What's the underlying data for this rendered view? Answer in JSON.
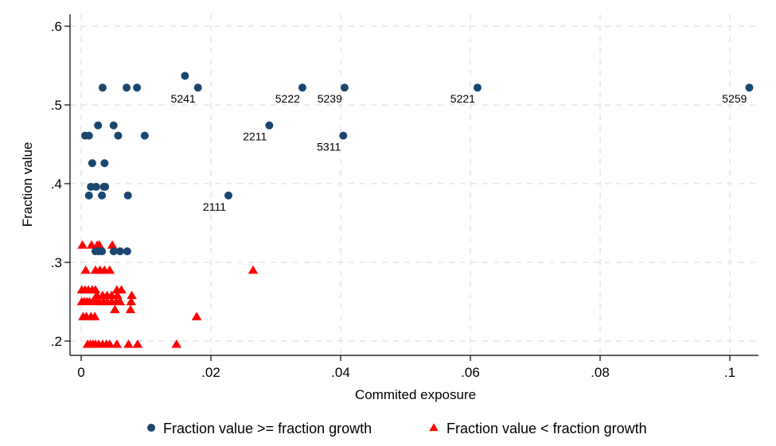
{
  "chart_data": {
    "type": "scatter",
    "title": "",
    "xlabel": "Commited exposure",
    "ylabel": "Fraction value",
    "xlim": [
      -0.0012,
      0.1042
    ],
    "ylim": [
      0.182,
      0.611
    ],
    "x_ticks": [
      0,
      0.02,
      0.04,
      0.06,
      0.08,
      0.1
    ],
    "x_tick_labels": [
      "0",
      ".02",
      ".04",
      ".06",
      ".08",
      ".1"
    ],
    "y_ticks": [
      0.2,
      0.3,
      0.4,
      0.5,
      0.6
    ],
    "y_tick_labels": [
      ".2",
      ".3",
      ".4",
      ".5",
      ".6"
    ],
    "grid": true,
    "legend_position": "bottom",
    "series": [
      {
        "name": "Fraction value >= fraction growth",
        "marker": "circle",
        "color": "#1a476f",
        "points": [
          {
            "x": 0.103,
            "y": 0.522,
            "label": "5259"
          },
          {
            "x": 0.0611,
            "y": 0.522,
            "label": "5221"
          },
          {
            "x": 0.0406,
            "y": 0.522,
            "label": "5239"
          },
          {
            "x": 0.0341,
            "y": 0.522,
            "label": "5222"
          },
          {
            "x": 0.018,
            "y": 0.522,
            "label": "5241"
          },
          {
            "x": 0.016,
            "y": 0.537,
            "label": ""
          },
          {
            "x": 0.0404,
            "y": 0.461,
            "label": "5311"
          },
          {
            "x": 0.029,
            "y": 0.474,
            "label": "2211"
          },
          {
            "x": 0.0227,
            "y": 0.385,
            "label": "2111"
          },
          {
            "x": 0.0033,
            "y": 0.522,
            "label": ""
          },
          {
            "x": 0.007,
            "y": 0.522,
            "label": ""
          },
          {
            "x": 0.0086,
            "y": 0.522,
            "label": ""
          },
          {
            "x": 0.0026,
            "y": 0.474,
            "label": ""
          },
          {
            "x": 0.005,
            "y": 0.474,
            "label": ""
          },
          {
            "x": 0.0006,
            "y": 0.461,
            "label": ""
          },
          {
            "x": 0.0012,
            "y": 0.461,
            "label": ""
          },
          {
            "x": 0.0057,
            "y": 0.461,
            "label": ""
          },
          {
            "x": 0.0098,
            "y": 0.461,
            "label": ""
          },
          {
            "x": 0.0017,
            "y": 0.426,
            "label": ""
          },
          {
            "x": 0.0036,
            "y": 0.426,
            "label": ""
          },
          {
            "x": 0.0015,
            "y": 0.396,
            "label": ""
          },
          {
            "x": 0.0023,
            "y": 0.396,
            "label": ""
          },
          {
            "x": 0.0035,
            "y": 0.396,
            "label": ""
          },
          {
            "x": 0.0037,
            "y": 0.396,
            "label": ""
          },
          {
            "x": 0.0012,
            "y": 0.385,
            "label": ""
          },
          {
            "x": 0.0032,
            "y": 0.385,
            "label": ""
          },
          {
            "x": 0.0072,
            "y": 0.385,
            "label": ""
          },
          {
            "x": 0.0022,
            "y": 0.314,
            "label": ""
          },
          {
            "x": 0.0027,
            "y": 0.314,
            "label": ""
          },
          {
            "x": 0.0032,
            "y": 0.314,
            "label": ""
          },
          {
            "x": 0.005,
            "y": 0.314,
            "label": ""
          },
          {
            "x": 0.006,
            "y": 0.314,
            "label": ""
          },
          {
            "x": 0.0071,
            "y": 0.314,
            "label": ""
          }
        ]
      },
      {
        "name": "Fraction value < fraction growth",
        "marker": "triangle",
        "color": "#ff0000",
        "points": [
          {
            "x": 0.0002,
            "y": 0.322
          },
          {
            "x": 0.0016,
            "y": 0.322
          },
          {
            "x": 0.0025,
            "y": 0.322
          },
          {
            "x": 0.0028,
            "y": 0.322
          },
          {
            "x": 0.0048,
            "y": 0.322
          },
          {
            "x": 0.0007,
            "y": 0.29
          },
          {
            "x": 0.0022,
            "y": 0.29
          },
          {
            "x": 0.0029,
            "y": 0.29
          },
          {
            "x": 0.0036,
            "y": 0.29
          },
          {
            "x": 0.0044,
            "y": 0.29
          },
          {
            "x": 0.0265,
            "y": 0.29
          },
          {
            "x": 0.0001,
            "y": 0.265
          },
          {
            "x": 0.0006,
            "y": 0.265
          },
          {
            "x": 0.0011,
            "y": 0.265
          },
          {
            "x": 0.0017,
            "y": 0.265
          },
          {
            "x": 0.0022,
            "y": 0.265
          },
          {
            "x": 0.0055,
            "y": 0.265
          },
          {
            "x": 0.0062,
            "y": 0.265
          },
          {
            "x": 0.0024,
            "y": 0.258
          },
          {
            "x": 0.0033,
            "y": 0.258
          },
          {
            "x": 0.004,
            "y": 0.258
          },
          {
            "x": 0.0047,
            "y": 0.258
          },
          {
            "x": 0.0056,
            "y": 0.258
          },
          {
            "x": 0.0078,
            "y": 0.258
          },
          {
            "x": 0.0001,
            "y": 0.25
          },
          {
            "x": 0.0005,
            "y": 0.25
          },
          {
            "x": 0.0009,
            "y": 0.25
          },
          {
            "x": 0.0013,
            "y": 0.25
          },
          {
            "x": 0.0018,
            "y": 0.25
          },
          {
            "x": 0.0023,
            "y": 0.25
          },
          {
            "x": 0.0028,
            "y": 0.25
          },
          {
            "x": 0.0034,
            "y": 0.25
          },
          {
            "x": 0.004,
            "y": 0.25
          },
          {
            "x": 0.0047,
            "y": 0.25
          },
          {
            "x": 0.0054,
            "y": 0.25
          },
          {
            "x": 0.006,
            "y": 0.25
          },
          {
            "x": 0.0077,
            "y": 0.25
          },
          {
            "x": 0.0052,
            "y": 0.24
          },
          {
            "x": 0.0076,
            "y": 0.24
          },
          {
            "x": 0.0003,
            "y": 0.231
          },
          {
            "x": 0.0008,
            "y": 0.231
          },
          {
            "x": 0.0015,
            "y": 0.231
          },
          {
            "x": 0.0021,
            "y": 0.231
          },
          {
            "x": 0.0178,
            "y": 0.231
          },
          {
            "x": 0.001,
            "y": 0.196
          },
          {
            "x": 0.0014,
            "y": 0.196
          },
          {
            "x": 0.0018,
            "y": 0.196
          },
          {
            "x": 0.0022,
            "y": 0.196
          },
          {
            "x": 0.0027,
            "y": 0.196
          },
          {
            "x": 0.0033,
            "y": 0.196
          },
          {
            "x": 0.0039,
            "y": 0.196
          },
          {
            "x": 0.0044,
            "y": 0.196
          },
          {
            "x": 0.0055,
            "y": 0.196
          },
          {
            "x": 0.0073,
            "y": 0.196
          },
          {
            "x": 0.0087,
            "y": 0.196
          },
          {
            "x": 0.0147,
            "y": 0.196
          }
        ]
      }
    ]
  },
  "legend": {
    "items": [
      {
        "label": "Fraction value >= fraction growth",
        "marker": "circle",
        "color": "#1a476f"
      },
      {
        "label": "Fraction value < fraction growth",
        "marker": "triangle",
        "color": "#ff0000"
      }
    ]
  }
}
